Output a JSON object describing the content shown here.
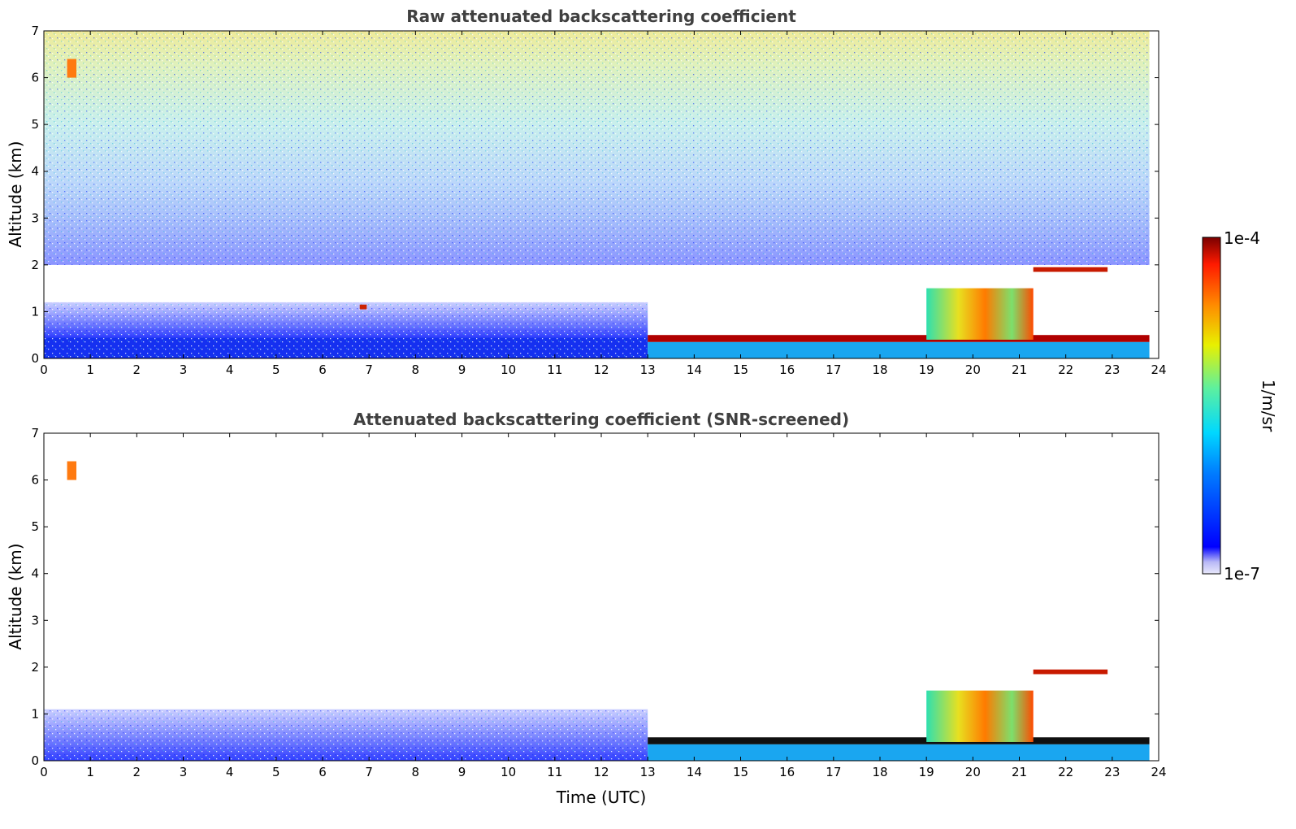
{
  "chart_data": [
    {
      "type": "heatmap",
      "title": "Raw attenuated backscattering coefficient",
      "xlabel": "",
      "ylabel": "Altitude (km)",
      "xlim": [
        0,
        24
      ],
      "ylim": [
        0,
        7
      ],
      "x_ticks": [
        0,
        1,
        2,
        3,
        4,
        5,
        6,
        7,
        8,
        9,
        10,
        11,
        12,
        13,
        14,
        15,
        16,
        17,
        18,
        19,
        20,
        21,
        22,
        23,
        24
      ],
      "y_ticks": [
        0,
        1,
        2,
        3,
        4,
        5,
        6,
        7
      ],
      "data_end_hour": 23.8,
      "features": [
        {
          "name": "boundary-layer",
          "x": [
            0,
            13
          ],
          "y": [
            0,
            0.45
          ],
          "value": "1e-6"
        },
        {
          "name": "aerosol-layer-low",
          "x": [
            0,
            13
          ],
          "y": [
            0.45,
            1.2
          ],
          "value": "3e-7"
        },
        {
          "name": "noise-upper",
          "x": [
            0,
            23.8
          ],
          "y": [
            2,
            7
          ],
          "value": "2e-6 to 2e-5"
        },
        {
          "name": "cloud-base-layer",
          "x": [
            13,
            23.8
          ],
          "y": [
            0.35,
            0.5
          ],
          "value": "1e-4"
        },
        {
          "name": "cloud-complex",
          "x": [
            19,
            21.3
          ],
          "y": [
            0.4,
            1.5
          ],
          "value": "2e-5"
        },
        {
          "name": "elevated-cloud",
          "x": [
            21.3,
            22.9
          ],
          "y": [
            1.85,
            1.95
          ],
          "value": "5e-5"
        },
        {
          "name": "cirrus",
          "x": [
            0.5,
            0.7
          ],
          "y": [
            6.0,
            6.4
          ],
          "value": "3e-5"
        },
        {
          "name": "small-cloud",
          "x": [
            6.8,
            6.95
          ],
          "y": [
            1.05,
            1.15
          ],
          "value": "5e-5"
        }
      ]
    },
    {
      "type": "heatmap",
      "title": "Attenuated backscattering coefficient (SNR-screened)",
      "xlabel": "Time (UTC)",
      "ylabel": "Altitude (km)",
      "xlim": [
        0,
        24
      ],
      "ylim": [
        0,
        7
      ],
      "x_ticks": [
        0,
        1,
        2,
        3,
        4,
        5,
        6,
        7,
        8,
        9,
        10,
        11,
        12,
        13,
        14,
        15,
        16,
        17,
        18,
        19,
        20,
        21,
        22,
        23,
        24
      ],
      "y_ticks": [
        0,
        1,
        2,
        3,
        4,
        5,
        6,
        7
      ],
      "data_end_hour": 23.8,
      "features": [
        {
          "name": "boundary-layer",
          "x": [
            0,
            13
          ],
          "y": [
            0,
            1.1
          ],
          "value": "1e-6"
        },
        {
          "name": "cloud-base-layer",
          "x": [
            13,
            23.8
          ],
          "y": [
            0.35,
            0.5
          ],
          "value": "1e-4"
        },
        {
          "name": "cloud-complex",
          "x": [
            19,
            21.3
          ],
          "y": [
            0.4,
            1.5
          ],
          "value": "2e-5"
        },
        {
          "name": "elevated-cloud",
          "x": [
            21.3,
            22.9
          ],
          "y": [
            1.85,
            1.95
          ],
          "value": "1e-4"
        },
        {
          "name": "cirrus",
          "x": [
            0.5,
            0.7
          ],
          "y": [
            6.0,
            6.4
          ],
          "value": "3e-5"
        }
      ]
    }
  ],
  "colorbar": {
    "label": "1/m/sr",
    "min_label": "1e-7",
    "max_label": "1e-4",
    "scale": "log",
    "colormap": "jet"
  }
}
